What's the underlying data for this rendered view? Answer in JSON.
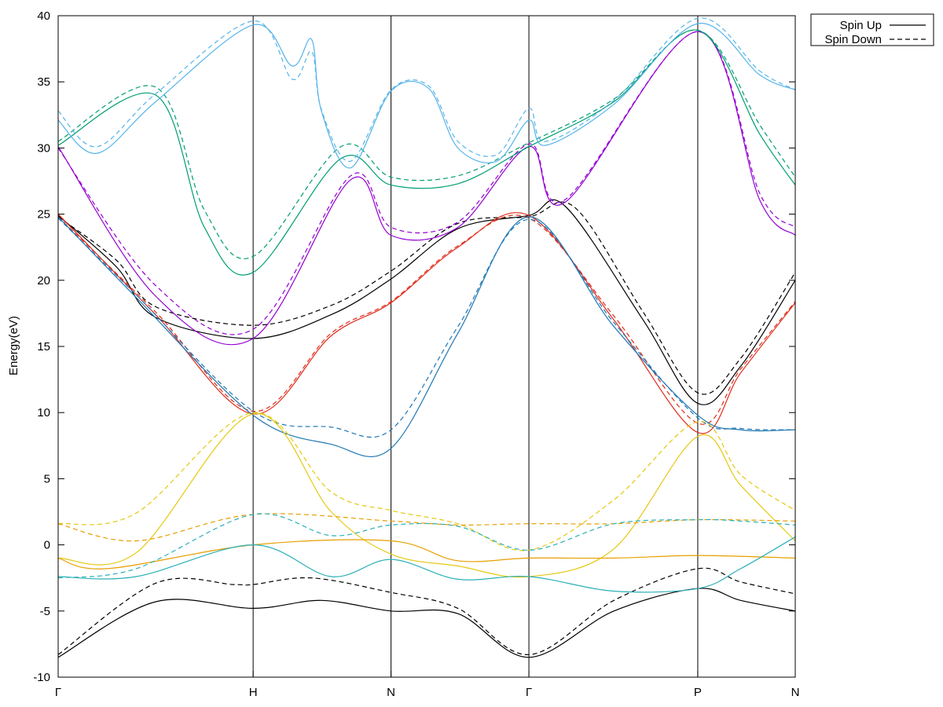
{
  "chart_data": {
    "type": "line",
    "title": "",
    "xlabel": "",
    "ylabel": "Energy(eV)",
    "ylim": [
      -10,
      40
    ],
    "yticks": [
      -10,
      -5,
      0,
      5,
      10,
      15,
      20,
      25,
      30,
      35,
      40
    ],
    "x_symmetry_points": [
      {
        "label": "Γ",
        "x": 0
      },
      {
        "label": "H",
        "x": 1
      },
      {
        "label": "N",
        "x": 1.7071
      },
      {
        "label": "Γ",
        "x": 2.4142
      },
      {
        "label": "P",
        "x": 3.2802
      },
      {
        "label": "N",
        "x": 3.7802
      }
    ],
    "legend": {
      "position": "top-right-outside",
      "entries": [
        {
          "name": "Spin Up",
          "style": "solid"
        },
        {
          "name": "Spin Down",
          "style": "dashed"
        }
      ]
    },
    "series": [
      {
        "spin": "Spin Up",
        "color": "#000000",
        "values": [
          [
            0,
            -8.5
          ],
          [
            0.5,
            -4.3
          ],
          [
            1,
            -4.8
          ],
          [
            1.35,
            -4.2
          ],
          [
            1.7071,
            -5
          ],
          [
            2.05,
            -5.2
          ],
          [
            2.4142,
            -8.5
          ],
          [
            2.85,
            -5
          ],
          [
            3.2802,
            -3.3
          ],
          [
            3.5,
            -4.2
          ],
          [
            3.7802,
            -5
          ]
        ]
      },
      {
        "spin": "Spin Down",
        "color": "#000000",
        "values": [
          [
            0,
            -8.3
          ],
          [
            0.5,
            -2.9
          ],
          [
            0.9,
            -3.0
          ],
          [
            1.0,
            -3.0
          ],
          [
            1.3,
            -2.5
          ],
          [
            1.7071,
            -3.6
          ],
          [
            2.05,
            -4.8
          ],
          [
            2.4142,
            -8.3
          ],
          [
            2.85,
            -4.2
          ],
          [
            3.2802,
            -1.8
          ],
          [
            3.5,
            -2.8
          ],
          [
            3.7802,
            -3.7
          ]
        ]
      },
      {
        "spin": "Spin Up",
        "color": "#000000",
        "values": [
          [
            0,
            24.9
          ],
          [
            0.3,
            21
          ],
          [
            0.5,
            17.2
          ],
          [
            1,
            15.6
          ],
          [
            1.4,
            17.4
          ],
          [
            1.7071,
            20.1
          ],
          [
            2.05,
            23.9
          ],
          [
            2.4142,
            24.9
          ],
          [
            2.6,
            25.6
          ],
          [
            3.0,
            17
          ],
          [
            3.2802,
            10.7
          ],
          [
            3.5,
            13.5
          ],
          [
            3.7802,
            20
          ]
        ]
      },
      {
        "spin": "Spin Down",
        "color": "#000000",
        "values": [
          [
            0,
            24.8
          ],
          [
            0.3,
            21.5
          ],
          [
            0.5,
            18
          ],
          [
            1,
            16.6
          ],
          [
            1.4,
            18.1
          ],
          [
            1.7071,
            20.7
          ],
          [
            2.05,
            24.3
          ],
          [
            2.4142,
            24.8
          ],
          [
            2.65,
            25.5
          ],
          [
            3.0,
            17.6
          ],
          [
            3.2802,
            11.5
          ],
          [
            3.5,
            14.1
          ],
          [
            3.7802,
            20.6
          ]
        ]
      },
      {
        "spin": "Spin Up",
        "color": "#e02a1a",
        "values": [
          [
            0,
            25
          ],
          [
            0.5,
            17.4
          ],
          [
            1,
            9.9
          ],
          [
            1.4,
            15.8
          ],
          [
            1.7071,
            18.3
          ],
          [
            2.05,
            22.5
          ],
          [
            2.4142,
            24.9
          ],
          [
            2.85,
            17
          ],
          [
            3.2802,
            8.5
          ],
          [
            3.5,
            13
          ],
          [
            3.7802,
            18.3
          ]
        ]
      },
      {
        "spin": "Spin Down",
        "color": "#e02a1a",
        "values": [
          [
            0,
            24.8
          ],
          [
            0.5,
            17.6
          ],
          [
            1,
            10.1
          ],
          [
            1.4,
            16
          ],
          [
            1.7071,
            18.4
          ],
          [
            2.05,
            22.6
          ],
          [
            2.4142,
            24.7
          ],
          [
            2.85,
            17.3
          ],
          [
            3.2802,
            9.2
          ],
          [
            3.5,
            13.3
          ],
          [
            3.7802,
            18.4
          ]
        ]
      },
      {
        "spin": "Spin Up",
        "color": "#1f77b4",
        "values": [
          [
            0,
            24.8
          ],
          [
            0.4,
            18.7
          ],
          [
            1,
            9.8
          ],
          [
            1.4,
            7.6
          ],
          [
            1.7071,
            7.3
          ],
          [
            2.05,
            16
          ],
          [
            2.4142,
            24.8
          ],
          [
            2.85,
            16.5
          ],
          [
            3.2802,
            9.8
          ],
          [
            3.5,
            8.7
          ],
          [
            3.7802,
            8.7
          ]
        ]
      },
      {
        "spin": "Spin Down",
        "color": "#1f77b4",
        "values": [
          [
            0,
            24.7
          ],
          [
            0.4,
            18.9
          ],
          [
            1,
            10.1
          ],
          [
            1.4,
            8.9
          ],
          [
            1.7071,
            8.7
          ],
          [
            2.05,
            16.5
          ],
          [
            2.4142,
            24.6
          ],
          [
            2.85,
            16.8
          ],
          [
            3.2802,
            9.6
          ],
          [
            3.5,
            8.8
          ],
          [
            3.7802,
            8.7
          ]
        ]
      },
      {
        "spin": "Spin Up",
        "color": "#9400d3",
        "values": [
          [
            0,
            30.1
          ],
          [
            0.5,
            18.8
          ],
          [
            1,
            15.6
          ],
          [
            1.5,
            27.6
          ],
          [
            1.7071,
            23.4
          ],
          [
            2.05,
            24
          ],
          [
            2.4142,
            30.1
          ],
          [
            2.6,
            25.9
          ],
          [
            3.2802,
            38.8
          ],
          [
            3.6,
            26
          ],
          [
            3.7802,
            23.4
          ]
        ]
      },
      {
        "spin": "Spin Down",
        "color": "#9400d3",
        "values": [
          [
            0,
            30
          ],
          [
            0.5,
            19.6
          ],
          [
            1,
            16.3
          ],
          [
            1.5,
            27.9
          ],
          [
            1.7071,
            24
          ],
          [
            2.05,
            24.4
          ],
          [
            2.4142,
            30.3
          ],
          [
            2.6,
            26.1
          ],
          [
            3.2802,
            38.8
          ],
          [
            3.6,
            26.5
          ],
          [
            3.7802,
            24
          ]
        ]
      },
      {
        "spin": "Spin Up",
        "color": "#009e73",
        "values": [
          [
            0,
            30.2
          ],
          [
            0.5,
            34
          ],
          [
            0.75,
            24
          ],
          [
            1,
            20.6
          ],
          [
            1.45,
            29.2
          ],
          [
            1.7071,
            27.2
          ],
          [
            2.05,
            27.3
          ],
          [
            2.4142,
            30.1
          ],
          [
            2.85,
            33.5
          ],
          [
            3.2802,
            38.9
          ],
          [
            3.6,
            31
          ],
          [
            3.7802,
            27.2
          ]
        ]
      },
      {
        "spin": "Spin Down",
        "color": "#009e73",
        "values": [
          [
            0,
            30.5
          ],
          [
            0.5,
            34.6
          ],
          [
            0.75,
            25.3
          ],
          [
            1,
            21.8
          ],
          [
            1.45,
            30.1
          ],
          [
            1.7071,
            27.8
          ],
          [
            2.05,
            27.9
          ],
          [
            2.4142,
            30.4
          ],
          [
            2.85,
            33.7
          ],
          [
            3.2802,
            38.9
          ],
          [
            3.6,
            31.7
          ],
          [
            3.7802,
            27.8
          ]
        ]
      },
      {
        "spin": "Spin Up",
        "color": "#56b4e9",
        "values": [
          [
            0,
            32.1
          ],
          [
            0.2,
            29.6
          ],
          [
            0.5,
            33.5
          ],
          [
            1,
            39.3
          ],
          [
            1.2,
            36.2
          ],
          [
            1.3,
            38.2
          ],
          [
            1.35,
            32.8
          ],
          [
            1.5,
            28.5
          ],
          [
            1.7071,
            34.3
          ],
          [
            1.9,
            34.5
          ],
          [
            2.05,
            30
          ],
          [
            2.25,
            29
          ],
          [
            2.4142,
            32.1
          ],
          [
            2.5,
            30.2
          ],
          [
            2.85,
            33.3
          ],
          [
            3.2802,
            39.4
          ],
          [
            3.6,
            35.5
          ],
          [
            3.7802,
            34.4
          ]
        ]
      },
      {
        "spin": "Spin Down",
        "color": "#56b4e9",
        "values": [
          [
            0,
            32.8
          ],
          [
            0.2,
            30.1
          ],
          [
            0.5,
            34.1
          ],
          [
            1,
            39.6
          ],
          [
            1.2,
            35.2
          ],
          [
            1.3,
            37.3
          ],
          [
            1.35,
            32.9
          ],
          [
            1.5,
            29
          ],
          [
            1.7071,
            34.4
          ],
          [
            1.9,
            34.7
          ],
          [
            2.05,
            30.5
          ],
          [
            2.25,
            29.5
          ],
          [
            2.4142,
            33
          ],
          [
            2.5,
            30.5
          ],
          [
            2.85,
            33.6
          ],
          [
            3.2802,
            39.8
          ],
          [
            3.6,
            35.8
          ],
          [
            3.7802,
            34.4
          ]
        ]
      },
      {
        "spin": "Spin Up",
        "color": "#e5c80f",
        "values": [
          [
            0,
            -1
          ],
          [
            0.4,
            -0.6
          ],
          [
            1,
            9.9
          ],
          [
            1.4,
            2.5
          ],
          [
            1.7071,
            -0.7
          ],
          [
            2.05,
            -1.6
          ],
          [
            2.4142,
            -2.4
          ],
          [
            2.85,
            -0.3
          ],
          [
            3.2802,
            8.2
          ],
          [
            3.5,
            4.5
          ],
          [
            3.7802,
            0.3
          ]
        ]
      },
      {
        "spin": "Spin Down",
        "color": "#e5c80f",
        "values": [
          [
            0,
            1.6
          ],
          [
            0.4,
            2.4
          ],
          [
            1,
            10
          ],
          [
            1.4,
            4
          ],
          [
            1.7071,
            2.6
          ],
          [
            2.05,
            1.6
          ],
          [
            2.4142,
            -0.4
          ],
          [
            2.85,
            3.4
          ],
          [
            3.2802,
            9.3
          ],
          [
            3.5,
            5.3
          ],
          [
            3.7802,
            2.6
          ]
        ]
      },
      {
        "spin": "Spin Up",
        "color": "#e69f00",
        "values": [
          [
            0,
            -1
          ],
          [
            0.25,
            -1.8
          ],
          [
            1,
            0
          ],
          [
            1.7071,
            0.3
          ],
          [
            2.05,
            -1.2
          ],
          [
            2.4142,
            -1
          ],
          [
            2.85,
            -1
          ],
          [
            3.2802,
            -0.8
          ],
          [
            3.7802,
            -1
          ]
        ]
      },
      {
        "spin": "Spin Down",
        "color": "#e69f00",
        "values": [
          [
            0,
            1.6
          ],
          [
            0.4,
            0.3
          ],
          [
            1,
            2.3
          ],
          [
            1.7071,
            1.8
          ],
          [
            2.05,
            1.5
          ],
          [
            2.4142,
            1.6
          ],
          [
            2.85,
            1.6
          ],
          [
            3.2802,
            1.9
          ],
          [
            3.7802,
            1.8
          ]
        ]
      },
      {
        "spin": "Spin Up",
        "color": "#2ab0b8",
        "values": [
          [
            0,
            -2.4
          ],
          [
            0.4,
            -2.4
          ],
          [
            1,
            0
          ],
          [
            1.4,
            -2.4
          ],
          [
            1.7071,
            -1.1
          ],
          [
            2.05,
            -2.6
          ],
          [
            2.4142,
            -2.4
          ],
          [
            2.85,
            -3.5
          ],
          [
            3.2802,
            -3.3
          ],
          [
            3.5,
            -1.8
          ],
          [
            3.7802,
            0.6
          ]
        ]
      },
      {
        "spin": "Spin Down",
        "color": "#2ab0b8",
        "values": [
          [
            0,
            -2.5
          ],
          [
            0.4,
            -1.8
          ],
          [
            1,
            2.3
          ],
          [
            1.4,
            0.7
          ],
          [
            1.7071,
            1.5
          ],
          [
            2.05,
            1.4
          ],
          [
            2.4142,
            -0.4
          ],
          [
            2.85,
            1.6
          ],
          [
            3.2802,
            1.9
          ],
          [
            3.5,
            1.8
          ],
          [
            3.7802,
            1.5
          ]
        ]
      }
    ]
  }
}
